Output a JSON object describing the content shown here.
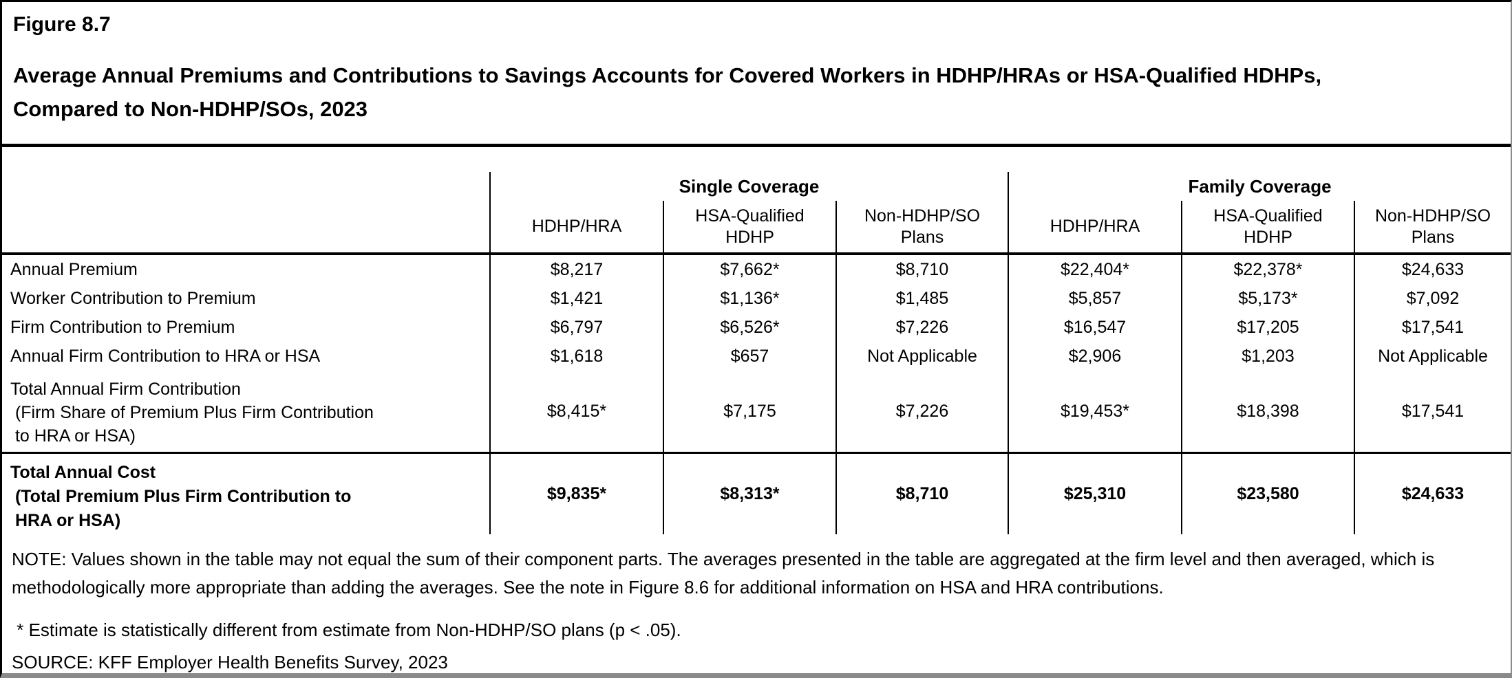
{
  "figure_label": "Figure 8.7",
  "title": "Average Annual Premiums and Contributions to Savings Accounts for Covered Workers in HDHP/HRAs or HSA-Qualified HDHPs, Compared to Non-HDHP/SOs, 2023",
  "chart_data": {
    "type": "table",
    "title": "Average Annual Premiums and Contributions to Savings Accounts for Covered Workers in HDHP/HRAs or HSA-Qualified HDHPs, Compared to Non-HDHP/SOs, 2023",
    "column_groups": [
      {
        "label": "Single Coverage",
        "span": 3
      },
      {
        "label": "Family Coverage",
        "span": 3
      }
    ],
    "columns": [
      "HDHP/HRA",
      "HSA-Qualified HDHP",
      "Non-HDHP/SO Plans",
      "HDHP/HRA",
      "HSA-Qualified HDHP",
      "Non-HDHP/SO Plans"
    ],
    "rows": [
      {
        "label": "Annual Premium",
        "values": [
          "$8,217",
          "$7,662*",
          "$8,710",
          "$22,404*",
          "$22,378*",
          "$24,633"
        ]
      },
      {
        "label": "Worker Contribution to Premium",
        "values": [
          "$1,421",
          "$1,136*",
          "$1,485",
          "$5,857",
          "$5,173*",
          "$7,092"
        ]
      },
      {
        "label": "Firm Contribution to Premium",
        "values": [
          "$6,797",
          "$6,526*",
          "$7,226",
          "$16,547",
          "$17,205",
          "$17,541"
        ]
      },
      {
        "label": "Annual Firm Contribution to HRA or HSA",
        "values": [
          "$1,618",
          "$657",
          "Not Applicable",
          "$2,906",
          "$1,203",
          "Not Applicable"
        ]
      },
      {
        "label_lines": [
          "Total Annual Firm Contribution",
          " (Firm Share of Premium Plus Firm Contribution",
          " to HRA or HSA)"
        ],
        "values": [
          "$8,415*",
          "$7,175",
          "$7,226",
          "$19,453*",
          "$18,398",
          "$17,541"
        ]
      }
    ],
    "total_row": {
      "label_lines": [
        "Total Annual Cost",
        " (Total Premium Plus Firm Contribution to",
        " HRA or HSA)"
      ],
      "values": [
        "$9,835*",
        "$8,313*",
        "$8,710",
        "$25,310",
        "$23,580",
        "$24,633"
      ]
    }
  },
  "notes": {
    "note": "NOTE: Values shown in the table may not equal the sum of their component parts. The averages presented in the table are aggregated at the firm level and then averaged, which is methodologically more appropriate than adding the averages. See the note in Figure 8.6 for additional information on HSA and HRA contributions.",
    "footnote": " * Estimate is statistically different from estimate from Non-HDHP/SO plans (p < .05).",
    "source": "SOURCE: KFF Employer Health Benefits Survey, 2023"
  },
  "colors": {
    "background": "#ffffff",
    "text": "#000000",
    "line": "#000000",
    "frame_gray": "#8a8a8a"
  }
}
